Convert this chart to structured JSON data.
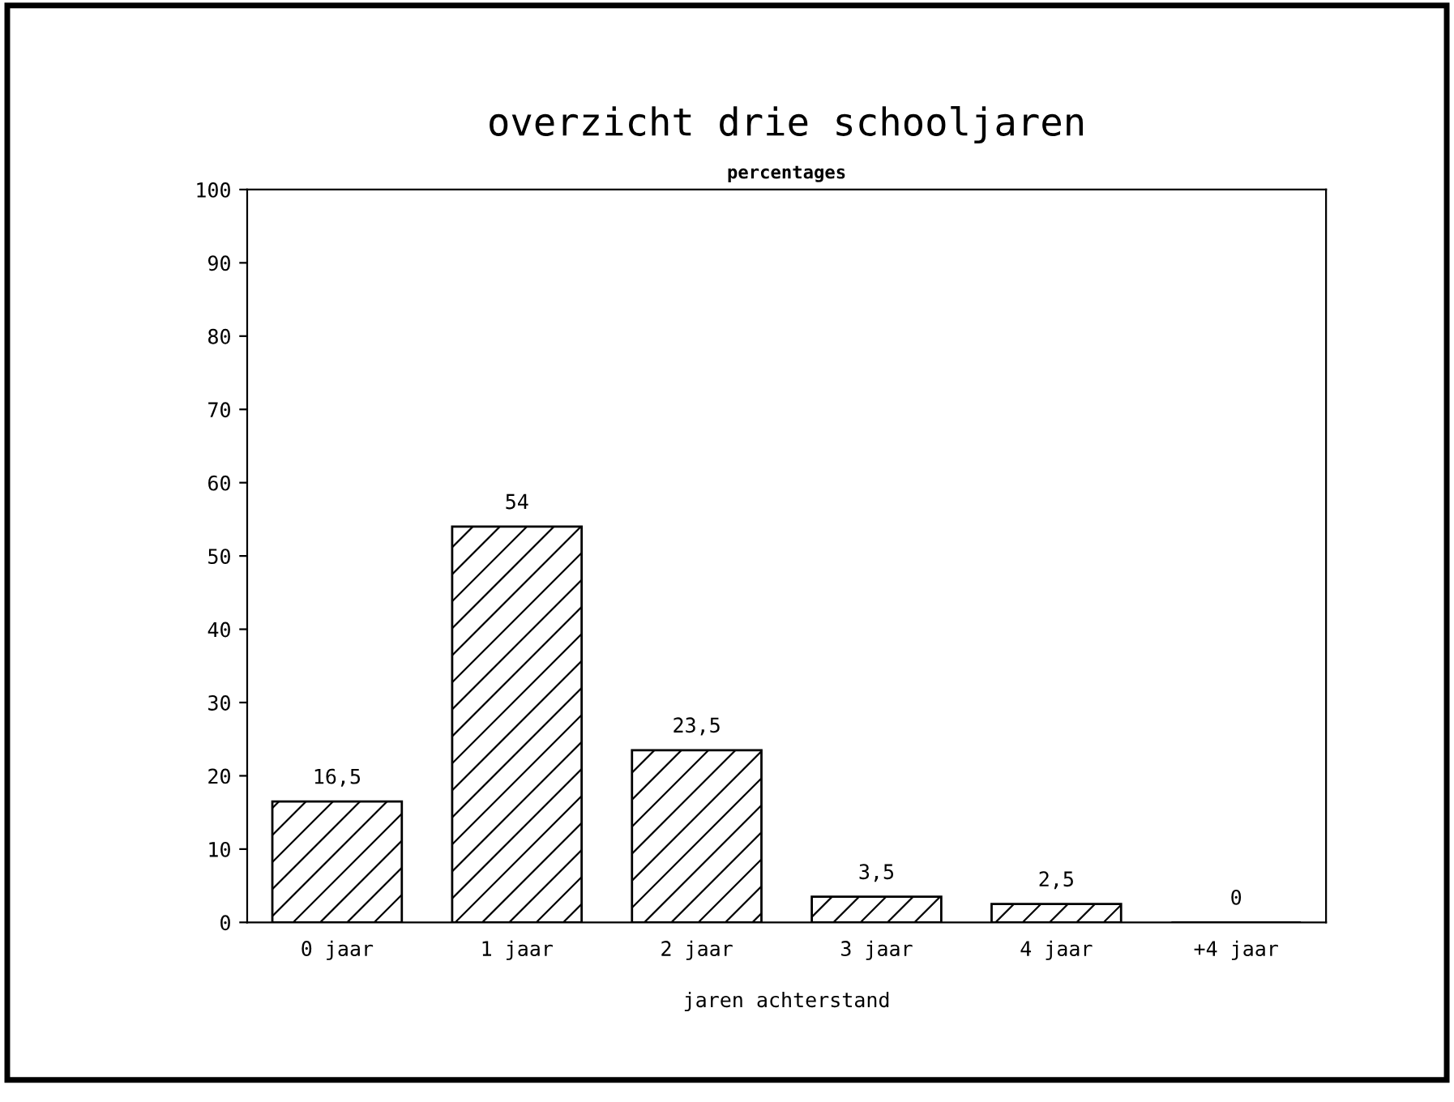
{
  "chart_data": {
    "type": "bar",
    "title": "overzicht drie schooljaren",
    "ylabel": "percentages",
    "xlabel": "jaren achterstand",
    "categories": [
      "0 jaar",
      "1 jaar",
      "2 jaar",
      "3 jaar",
      "4 jaar",
      "+4 jaar"
    ],
    "values": [
      16.5,
      54,
      23.5,
      3.5,
      2.5,
      0
    ],
    "value_labels": [
      "16,5",
      "54",
      "23,5",
      "3,5",
      "2,5",
      "0"
    ],
    "color": "#000000",
    "ylim": [
      0,
      100
    ],
    "yticks": [
      0,
      10,
      20,
      30,
      40,
      50,
      60,
      70,
      80,
      90,
      100
    ],
    "grid": false,
    "legend": false
  }
}
